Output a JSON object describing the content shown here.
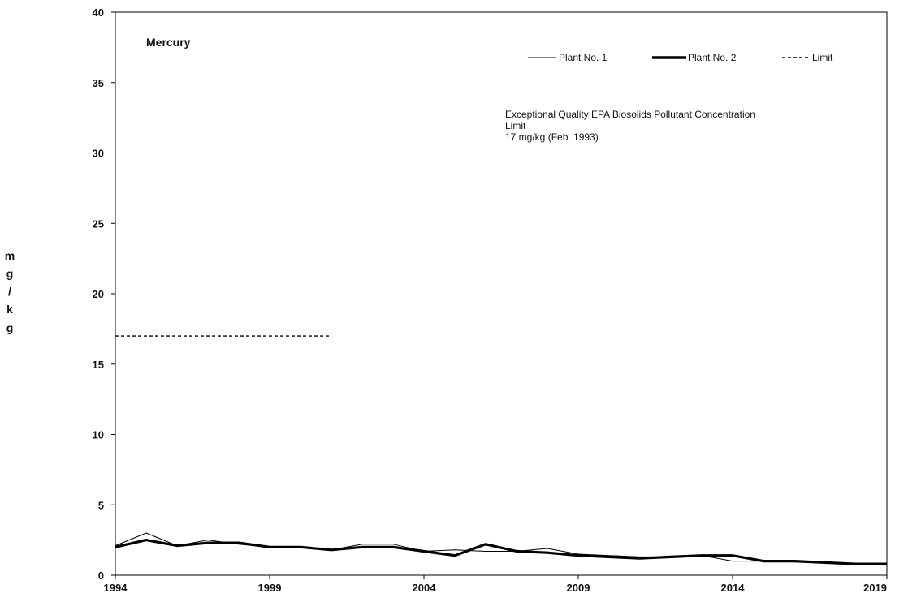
{
  "chart_data": {
    "type": "line",
    "title": "Mercury",
    "ylabel_letters": [
      "m",
      "g",
      "/",
      "k",
      "g"
    ],
    "ylim": [
      0,
      40
    ],
    "yticks": [
      0,
      5,
      10,
      15,
      20,
      25,
      30,
      35,
      40
    ],
    "xlim": [
      1994,
      2019
    ],
    "xticks": [
      1994,
      1999,
      2004,
      2009,
      2014,
      2019
    ],
    "grid": false,
    "legend_position": "top-right",
    "annotation": [
      "Exceptional Quality EPA Biosolids Pollutant Concentration",
      "Limit",
      "17 mg/kg (Feb. 1993)"
    ],
    "series": [
      {
        "name": "Plant No. 1",
        "style": "thin",
        "x": [
          1994,
          1995,
          1996,
          1997,
          1998,
          1999,
          2000,
          2001,
          2002,
          2003,
          2004,
          2005,
          2006,
          2007,
          2008,
          2009,
          2010,
          2011,
          2012,
          2013,
          2014,
          2015,
          2016,
          2017,
          2018,
          2019
        ],
        "y": [
          2.1,
          3.0,
          2.1,
          2.5,
          2.2,
          2.0,
          2.0,
          1.8,
          2.2,
          2.2,
          1.7,
          1.8,
          1.7,
          1.7,
          1.9,
          1.5,
          1.4,
          1.3,
          1.3,
          1.4,
          1.0,
          1.0,
          1.0,
          0.9,
          0.8,
          0.8
        ]
      },
      {
        "name": "Plant No. 2",
        "style": "thick",
        "x": [
          1994,
          1995,
          1996,
          1997,
          1998,
          1999,
          2000,
          2001,
          2002,
          2003,
          2004,
          2005,
          2006,
          2007,
          2008,
          2009,
          2010,
          2011,
          2012,
          2013,
          2014,
          2015,
          2016,
          2017,
          2018,
          2019
        ],
        "y": [
          2.0,
          2.5,
          2.1,
          2.3,
          2.3,
          2.0,
          2.0,
          1.8,
          2.0,
          2.0,
          1.7,
          1.4,
          2.2,
          1.7,
          1.6,
          1.4,
          1.3,
          1.2,
          1.3,
          1.4,
          1.4,
          1.0,
          1.0,
          0.9,
          0.8,
          0.8
        ]
      },
      {
        "name": "Limit",
        "style": "dashed",
        "x": [
          1994,
          2001
        ],
        "y": [
          17,
          17
        ]
      }
    ]
  }
}
